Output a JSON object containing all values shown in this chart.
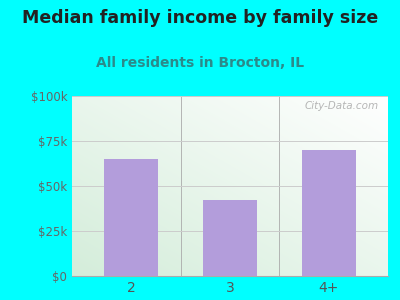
{
  "categories": [
    "2",
    "3",
    "4+"
  ],
  "values": [
    65000,
    42000,
    70000
  ],
  "bar_color": "#b39ddb",
  "title": "Median family income by family size",
  "subtitle": "All residents in Brocton, IL",
  "subtitle_color": "#2b8a8a",
  "title_color": "#222222",
  "ylim": [
    0,
    100000
  ],
  "yticks": [
    0,
    25000,
    50000,
    75000,
    100000
  ],
  "ytick_labels": [
    "$0",
    "$25k",
    "$50k",
    "$75k",
    "$100k"
  ],
  "background_color": "#00FFFF",
  "grid_color": "#cccccc",
  "watermark": "City-Data.com",
  "title_fontsize": 12.5,
  "subtitle_fontsize": 10
}
